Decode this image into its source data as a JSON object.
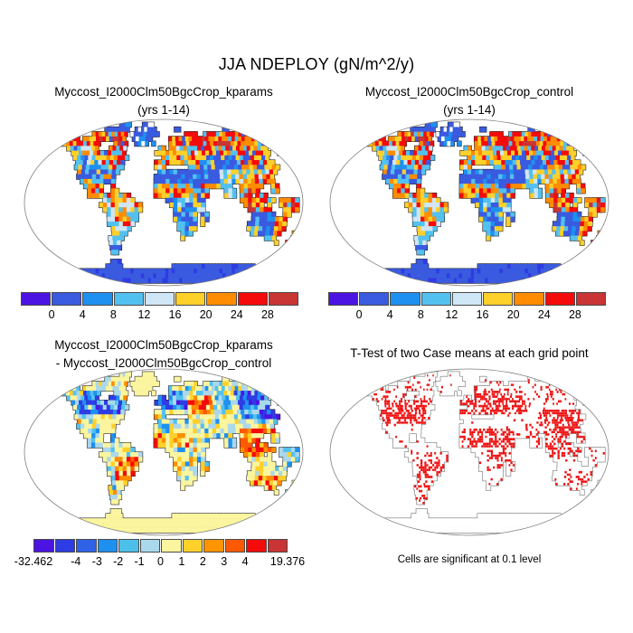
{
  "figure_title": "JJA NDEPLOY (gN/m^2/y)",
  "panels": {
    "top_left": {
      "title_line1": "Myccost_I2000Clm50BgcCrop_kparams",
      "title_line2": "(yrs 1-14)"
    },
    "top_right": {
      "title_line1": "Myccost_I2000Clm50BgcCrop_control",
      "title_line2": "(yrs 1-14)"
    },
    "bottom_left": {
      "title_line1": "Myccost_I2000Clm50BgcCrop_kparams",
      "title_line2": "- Myccost_I2000Clm50BgcCrop_control"
    },
    "bottom_right": {
      "title": "T-Test of two Case means at each grid point",
      "caption": "Cells are significant at 0.1 level"
    }
  },
  "colorbars": {
    "upper": {
      "colors": [
        "#4b14e3",
        "#3a5be0",
        "#1e90f0",
        "#53c1f0",
        "#cfe6f6",
        "#fed02a",
        "#ff8c00",
        "#f40b0b",
        "#c93434"
      ],
      "tick_labels": [
        "0",
        "4",
        "8",
        "12",
        "16",
        "20",
        "24",
        "28"
      ],
      "tick_positions": [
        0.1111,
        0.2222,
        0.3333,
        0.4444,
        0.5556,
        0.6667,
        0.7778,
        0.8889
      ]
    },
    "difference": {
      "colors": [
        "#4b14e3",
        "#2e3ce4",
        "#2f62e6",
        "#1e90f0",
        "#4cc0ea",
        "#aad8ec",
        "#fbf59f",
        "#fed02a",
        "#ff9400",
        "#fe5900",
        "#f40b0b",
        "#c93434"
      ],
      "tick_labels": [
        "-32.462",
        "-4",
        "-3",
        "-2",
        "-1",
        "0",
        "1",
        "2",
        "3",
        "4",
        "19.376"
      ],
      "tick_positions": [
        0,
        0.1667,
        0.25,
        0.3333,
        0.4167,
        0.5,
        0.5833,
        0.6667,
        0.75,
        0.8333,
        1
      ]
    }
  },
  "palette": {
    "violet": "#4b14e3",
    "blue": "#2e3ce4",
    "royal": "#3a5be0",
    "dodger": "#1e90f0",
    "sky": "#53c1f0",
    "pale": "#cfe6f6",
    "lblue": "#aad8ec",
    "paleY": "#fbf59f",
    "gold": "#fed02a",
    "orange": "#ff8c00",
    "orngred": "#fe5900",
    "red": "#f40b0b",
    "brick": "#c93434",
    "white": "#ffffff",
    "sig_red": "#ee1111",
    "coast": "#1b1b1b",
    "coast_light": "#666666",
    "map_border": "#808080"
  },
  "chart_data": [
    {
      "type": "heatmap",
      "subtype": "global-map",
      "projection": "robinson",
      "title": "Myccost_I2000Clm50BgcCrop_kparams (yrs 1-14)",
      "variable": "NDEPLOY",
      "season": "JJA",
      "units": "gN/m^2/y",
      "levels": [
        0,
        4,
        8,
        12,
        16,
        20,
        24,
        28
      ],
      "colors": [
        "#4b14e3",
        "#3a5be0",
        "#1e90f0",
        "#53c1f0",
        "#cfe6f6",
        "#fed02a",
        "#ff8c00",
        "#f40b0b",
        "#c93434"
      ],
      "pattern_notes": "High values (red/orange, >20) over boreal North America and Siberia, eastern US, west African coast, Southeast Asia and east Australian coast; low values (blue, <4) over Sahara, Arabia, central Asia, interior Australia, Greenland and Antarctica; intermediate pale/sky values over Amazon and India."
    },
    {
      "type": "heatmap",
      "subtype": "global-map",
      "projection": "robinson",
      "title": "Myccost_I2000Clm50BgcCrop_control (yrs 1-14)",
      "variable": "NDEPLOY",
      "season": "JJA",
      "units": "gN/m^2/y",
      "levels": [
        0,
        4,
        8,
        12,
        16,
        20,
        24,
        28
      ],
      "colors": [
        "#4b14e3",
        "#3a5be0",
        "#1e90f0",
        "#53c1f0",
        "#cfe6f6",
        "#fed02a",
        "#ff8c00",
        "#f40b0b",
        "#c93434"
      ],
      "pattern_notes": "Visually nearly identical spatial pattern to the kparams case."
    },
    {
      "type": "heatmap",
      "subtype": "difference-map",
      "projection": "robinson",
      "title": "Myccost_I2000Clm50BgcCrop_kparams - Myccost_I2000Clm50BgcCrop_control",
      "min": -32.462,
      "max": 19.376,
      "levels": [
        -4,
        -3,
        -2,
        -1,
        0,
        1,
        2,
        3,
        4
      ],
      "colors": [
        "#4b14e3",
        "#2e3ce4",
        "#2f62e6",
        "#1e90f0",
        "#4cc0ea",
        "#aad8ec",
        "#fbf59f",
        "#fed02a",
        "#ff9400",
        "#fe5900",
        "#f40b0b",
        "#c93434"
      ],
      "pattern_notes": "Mostly pale-yellow (near zero) land; strong negative (blue) clusters over central/eastern North America, western Europe and eastern Siberia/NE China; positive (red/orange) clusters over eastern Europe, Brazil, west Africa, Southeast Asia and southern Australia."
    },
    {
      "type": "map",
      "subtype": "significance-mask",
      "projection": "robinson",
      "title": "T-Test of two Case means at each grid point",
      "caption": "Cells are significant at 0.1 level",
      "significance_level": 0.1,
      "highlight_color": "#ee1111",
      "pattern_notes": "Red cells (significant differences) concentrated over the US, Europe, eastern Europe, China/Southeast Asia, west and east Africa, Brazil, southern South America and southeastern Australia; continent outlines otherwise empty."
    }
  ]
}
